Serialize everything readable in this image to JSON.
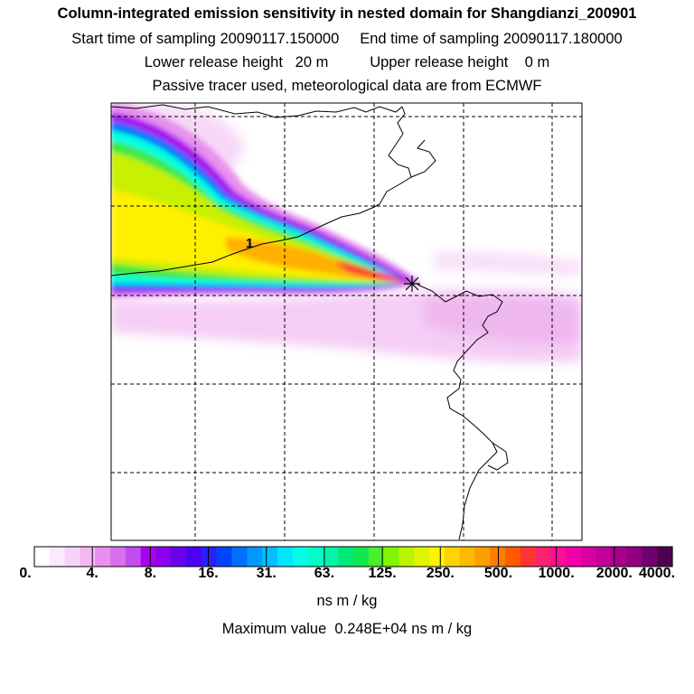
{
  "header": {
    "title": "Column-integrated emission sensitivity in nested domain for Shangdianzi_200901",
    "sampling_line": "Start time of sampling 20090117.150000     End time of sampling 20090117.180000",
    "release_line": "Lower release height   20 m          Upper release height    0 m",
    "tracer_line": "Passive tracer used, meteorological data are from ECMWF"
  },
  "map": {
    "contour_label": "1",
    "receptor_marker": "asterisk-star",
    "colors": {
      "frame": "#000000",
      "gridline": "#000000",
      "coastline": "#000000"
    }
  },
  "colorbar": {
    "labels": [
      "0.",
      "4.",
      "8.",
      "16.",
      "31.",
      "63.",
      "125.",
      "250.",
      "500.",
      "1000.",
      "2000.",
      "4000."
    ],
    "colors": [
      "#ffffff",
      "#fde8fd",
      "#f9d2f9",
      "#f3b8f3",
      "#e890ee",
      "#d870ee",
      "#c24cf0",
      "#a800f0",
      "#8a00ee",
      "#6a00ee",
      "#4c00f4",
      "#2a20f8",
      "#0044ff",
      "#0070ff",
      "#0098ff",
      "#00c0ff",
      "#00e6ff",
      "#00ffe8",
      "#00ffc8",
      "#00f5aa",
      "#00e878",
      "#10e84c",
      "#48ef2c",
      "#80f400",
      "#b8f400",
      "#e0f400",
      "#fff200",
      "#ffd400",
      "#ffb800",
      "#ff9c00",
      "#ff7c00",
      "#ff5a00",
      "#ff3434",
      "#ff2070",
      "#ff0c98",
      "#f000a8",
      "#d800a0",
      "#c00096",
      "#a8008c",
      "#900080",
      "#700070",
      "#500050"
    ],
    "units": "ns m / kg",
    "max_value_text": "Maximum value  0.248E+04 ns m / kg"
  }
}
